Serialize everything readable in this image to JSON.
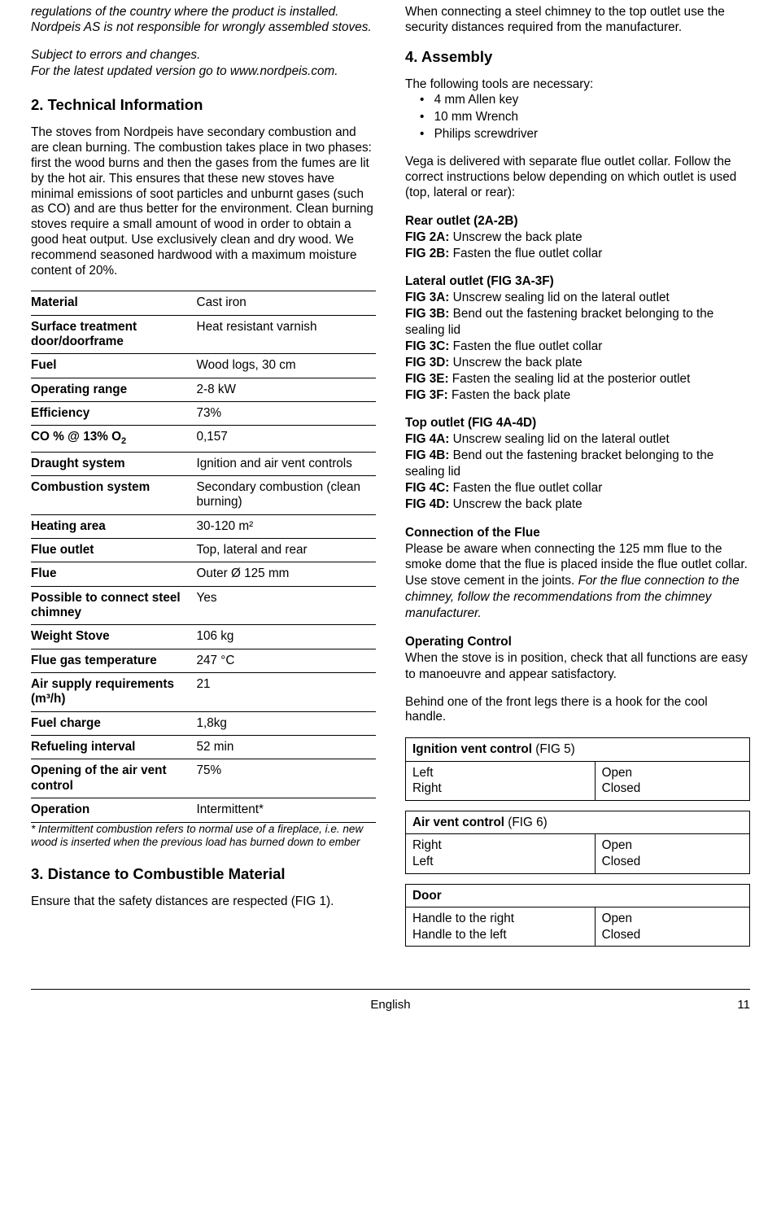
{
  "left": {
    "intro1": "regulations of the country where the product is installed. Nordpeis AS is not responsible for wrongly assembled stoves.",
    "intro2": "Subject to errors and changes.",
    "intro3": "For the latest updated version go to www.nordpeis.com.",
    "h_tech": "2. Technical Information",
    "tech_para": "The stoves from Nordpeis have secondary combustion and are clean burning. The combustion takes place in two phases: first the wood burns and then the gases from the fumes are lit by the hot air. This ensures that these new stoves have minimal emissions of soot particles and unburnt gases (such as CO) and are thus better for the environment. Clean burning stoves require a small amount of wood in order to obtain a good heat output. Use exclusively clean and dry wood. We recommend seasoned hardwood with a maximum moisture content of 20%.",
    "spec_rows": [
      [
        "Material",
        "Cast iron"
      ],
      [
        "Surface treatment door/doorframe",
        "Heat resistant varnish"
      ],
      [
        "Fuel",
        "Wood logs, 30 cm"
      ],
      [
        "Operating range",
        "2-8 kW"
      ],
      [
        "Efficiency",
        "73%"
      ],
      [
        "CO % @ 13% O",
        "0,157"
      ],
      [
        "Draught system",
        "Ignition and air vent controls"
      ],
      [
        "Combustion system",
        "Secondary combustion (clean burning)"
      ],
      [
        "Heating area",
        "30-120 m²"
      ],
      [
        "Flue outlet",
        "Top, lateral and rear"
      ],
      [
        "Flue",
        "Outer Ø 125 mm"
      ],
      [
        "Possible to connect steel chimney",
        "Yes"
      ],
      [
        "Weight Stove",
        "106 kg"
      ],
      [
        "Flue gas temperature",
        "247 °C"
      ],
      [
        "Air supply requirements (m³/h)",
        "21"
      ],
      [
        "Fuel charge",
        "1,8kg"
      ],
      [
        "Refueling interval",
        "52 min"
      ],
      [
        "Opening of the air vent control",
        "75%"
      ],
      [
        "Operation",
        "Intermittent*"
      ]
    ],
    "co_sub": "2",
    "footnote": "* Intermittent combustion refers to normal use of a fireplace, i.e. new wood is inserted when the previous load has burned down to ember",
    "h_dist": "3. Distance to Combustible Material",
    "dist_para": "Ensure that the safety distances are respected (FIG 1)."
  },
  "right": {
    "connect_para": "When connecting a steel chimney to the top outlet use the security distances required from the manufacturer.",
    "h_asm": "4. Assembly",
    "tools_intro": "The following tools are necessary:",
    "tools": [
      "4 mm Allen key",
      "10 mm Wrench",
      "Philips screwdriver"
    ],
    "vega_para": "Vega is delivered with separate flue outlet collar. Follow the correct instructions below depending on which outlet is used (top, lateral or rear):",
    "rear_title": "Rear outlet (2A-2B)",
    "rear_figs": [
      [
        "FIG 2A:",
        " Unscrew the back plate"
      ],
      [
        "FIG 2B:",
        " Fasten the flue outlet collar"
      ]
    ],
    "lat_title": "Lateral outlet (FIG 3A-3F)",
    "lat_figs": [
      [
        "FIG 3A:",
        " Unscrew sealing lid on the lateral outlet"
      ],
      [
        "FIG 3B:",
        " Bend out the fastening bracket belonging to the sealing lid"
      ],
      [
        "FIG 3C:",
        " Fasten the flue outlet collar"
      ],
      [
        "FIG 3D:",
        " Unscrew the back plate"
      ],
      [
        "FIG 3E:",
        " Fasten the sealing lid at the posterior outlet"
      ],
      [
        "FIG 3F:",
        " Fasten the back plate"
      ]
    ],
    "top_title": "Top outlet (FIG 4A-4D)",
    "top_figs": [
      [
        "FIG 4A:",
        " Unscrew sealing lid on the lateral outlet"
      ],
      [
        "FIG 4B:",
        " Bend out the fastening bracket belonging to the sealing lid"
      ],
      [
        "FIG 4C:",
        " Fasten the flue outlet collar"
      ],
      [
        "FIG 4D:",
        " Unscrew the back plate"
      ]
    ],
    "conn_flue_title": "Connection of the Flue",
    "conn_flue_p1": "Please be aware when connecting the 125 mm flue to the smoke dome that the flue is placed inside the flue outlet collar. Use stove cement in the joints. ",
    "conn_flue_p2": "For the flue connection to the chimney, follow the recommendations from the chimney manufacturer.",
    "op_ctrl_title": "Operating Control",
    "op_ctrl_para": "When the stove is in position, check that all functions are easy to manoeuvre and appear satisfactory.",
    "hook_para": "Behind one of the front legs there is a hook for the cool handle.",
    "ctrl1_title_b": "Ignition vent control",
    "ctrl1_title_r": " (FIG 5)",
    "ctrl1_rows": [
      [
        "Left",
        "Open"
      ],
      [
        "Right",
        "Closed"
      ]
    ],
    "ctrl2_title_b": "Air vent control",
    "ctrl2_title_r": " (FIG 6)",
    "ctrl2_rows": [
      [
        "Right",
        "Open"
      ],
      [
        "Left",
        "Closed"
      ]
    ],
    "ctrl3_title": "Door",
    "ctrl3_rows": [
      [
        "Handle to the right",
        "Open"
      ],
      [
        "Handle to the left",
        "Closed"
      ]
    ]
  },
  "footer": {
    "lang": "English",
    "page": "11"
  }
}
